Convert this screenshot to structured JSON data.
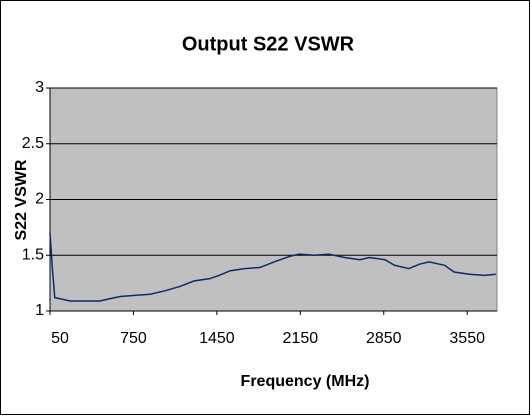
{
  "chart_data": {
    "type": "line",
    "title": "Output S22 VSWR",
    "x_label": "Frequency (MHz)",
    "y_label": "S22 VSWR",
    "x": [
      50,
      70,
      90,
      220,
      380,
      470,
      550,
      640,
      760,
      890,
      1010,
      1140,
      1260,
      1390,
      1470,
      1560,
      1680,
      1810,
      1930,
      2060,
      2140,
      2270,
      2390,
      2520,
      2650,
      2730,
      2860,
      2940,
      3060,
      3150,
      3230,
      3360,
      3440,
      3570,
      3690,
      3790
    ],
    "series": [
      {
        "name": "S22 VSWR",
        "color": "#0b2a6b",
        "values": [
          1.7,
          1.38,
          1.12,
          1.09,
          1.09,
          1.09,
          1.11,
          1.13,
          1.14,
          1.15,
          1.18,
          1.22,
          1.27,
          1.29,
          1.32,
          1.36,
          1.38,
          1.39,
          1.44,
          1.49,
          1.51,
          1.5,
          1.51,
          1.48,
          1.46,
          1.48,
          1.46,
          1.41,
          1.38,
          1.42,
          1.44,
          1.41,
          1.35,
          1.33,
          1.32,
          1.33
        ]
      }
    ],
    "xlim": [
      50,
      3800
    ],
    "xticks": [
      50,
      750,
      1450,
      2150,
      2850,
      3550
    ],
    "ylim": [
      1,
      3
    ],
    "yticks": [
      1,
      1.5,
      2,
      2.5,
      3
    ],
    "grid": true,
    "plot_background": "#c0c0c0"
  }
}
